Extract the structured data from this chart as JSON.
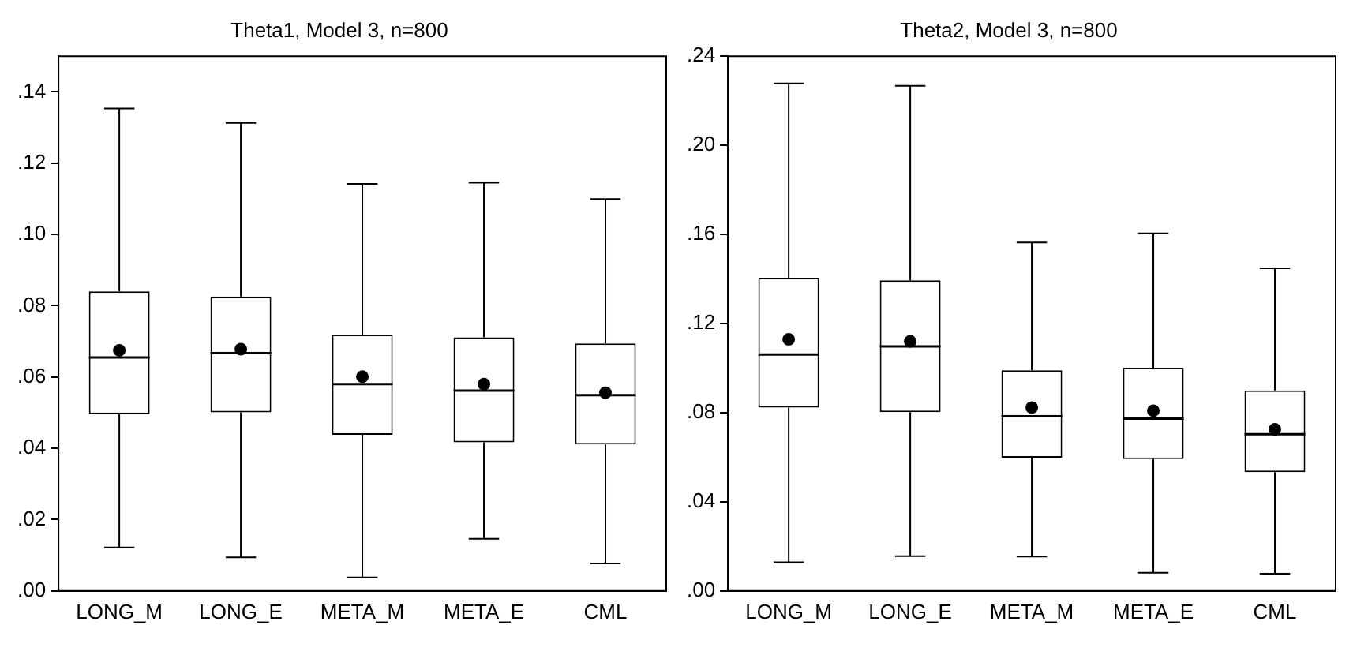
{
  "chart_data": [
    {
      "type": "box",
      "title": "Theta1, Model 3, n=800",
      "categories": [
        "LONG_M",
        "LONG_E",
        "META_M",
        "META_E",
        "CML"
      ],
      "boxes": [
        {
          "low": 0.0122,
          "q1": 0.0496,
          "median": 0.0655,
          "q3": 0.084,
          "high": 0.1353,
          "mean": 0.0675
        },
        {
          "low": 0.0094,
          "q1": 0.0501,
          "median": 0.0667,
          "q3": 0.0826,
          "high": 0.1313,
          "mean": 0.0678
        },
        {
          "low": 0.0038,
          "q1": 0.0438,
          "median": 0.058,
          "q3": 0.0719,
          "high": 0.1142,
          "mean": 0.0601
        },
        {
          "low": 0.0146,
          "q1": 0.0417,
          "median": 0.0562,
          "q3": 0.0711,
          "high": 0.1145,
          "mean": 0.058
        },
        {
          "low": 0.0077,
          "q1": 0.0411,
          "median": 0.0549,
          "q3": 0.0694,
          "high": 0.1099,
          "mean": 0.0556
        }
      ],
      "ylim": [
        0,
        0.15
      ],
      "yticks": [
        {
          "value": 0,
          "label": ".00"
        },
        {
          "value": 0.02,
          "label": ".02"
        },
        {
          "value": 0.04,
          "label": ".04"
        },
        {
          "value": 0.06,
          "label": ".06"
        },
        {
          "value": 0.08,
          "label": ".08"
        },
        {
          "value": 0.1,
          "label": ".10"
        },
        {
          "value": 0.12,
          "label": ".12"
        },
        {
          "value": 0.14,
          "label": ".14"
        }
      ],
      "grid": false,
      "legend": false
    },
    {
      "type": "box",
      "title": "Theta2, Model 3, n=800",
      "categories": [
        "LONG_M",
        "LONG_E",
        "META_M",
        "META_E",
        "CML"
      ],
      "boxes": [
        {
          "low": 0.0129,
          "q1": 0.0823,
          "median": 0.1061,
          "q3": 0.1405,
          "high": 0.2278,
          "mean": 0.1129
        },
        {
          "low": 0.0156,
          "q1": 0.0802,
          "median": 0.1097,
          "q3": 0.1394,
          "high": 0.2267,
          "mean": 0.112
        },
        {
          "low": 0.0154,
          "q1": 0.0598,
          "median": 0.0784,
          "q3": 0.099,
          "high": 0.1564,
          "mean": 0.0823
        },
        {
          "low": 0.0082,
          "q1": 0.0592,
          "median": 0.0773,
          "q3": 0.1002,
          "high": 0.1605,
          "mean": 0.0809
        },
        {
          "low": 0.0077,
          "q1": 0.0533,
          "median": 0.0703,
          "q3": 0.09,
          "high": 0.1448,
          "mean": 0.0725
        }
      ],
      "ylim": [
        0,
        0.24
      ],
      "yticks": [
        {
          "value": 0,
          "label": ".00"
        },
        {
          "value": 0.04,
          "label": ".04"
        },
        {
          "value": 0.08,
          "label": ".08"
        },
        {
          "value": 0.12,
          "label": ".12"
        },
        {
          "value": 0.16,
          "label": ".16"
        },
        {
          "value": 0.2,
          "label": ".20"
        },
        {
          "value": 0.24,
          "label": ".24"
        }
      ],
      "grid": false,
      "legend": false
    }
  ]
}
